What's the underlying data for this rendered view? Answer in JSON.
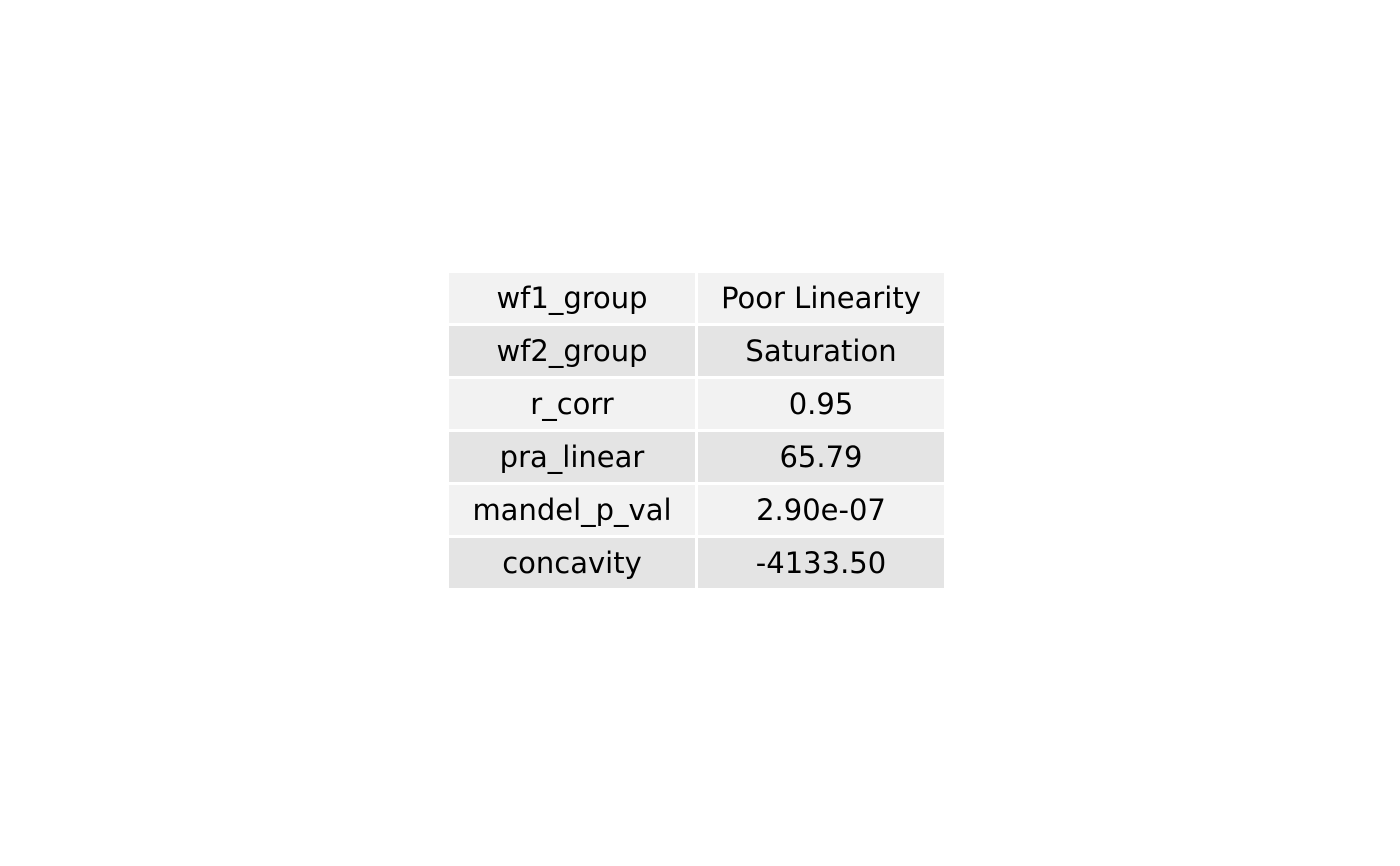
{
  "chart_data": {
    "type": "table",
    "rows": [
      [
        "wf1_group",
        "Poor Linearity"
      ],
      [
        "wf2_group",
        "Saturation"
      ],
      [
        "r_corr",
        "0.95"
      ],
      [
        "pra_linear",
        "65.79"
      ],
      [
        "mandel_p_val",
        "2.90e-07"
      ],
      [
        "concavity",
        "-4133.50"
      ]
    ],
    "colors": {
      "row_light": "#f2f2f2",
      "row_dark": "#e4e4e4",
      "text": "#000000",
      "background": "#ffffff"
    }
  }
}
